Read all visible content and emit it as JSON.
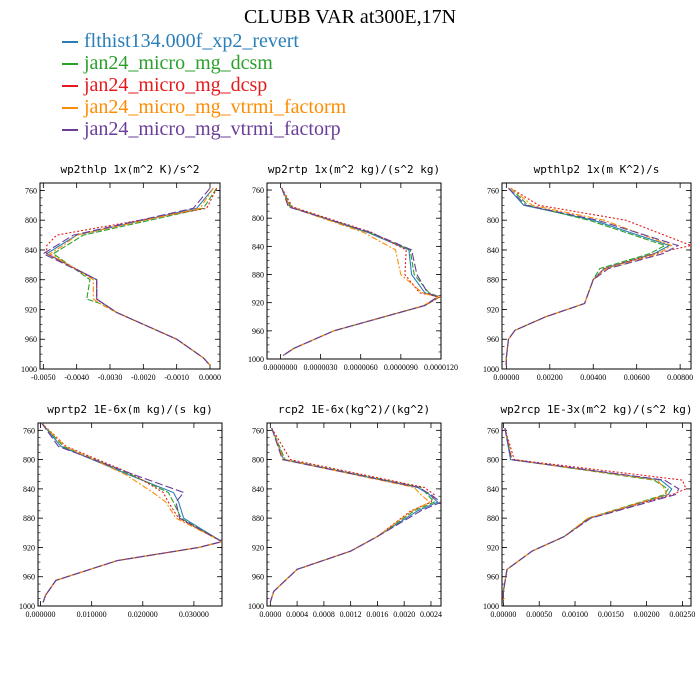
{
  "title": "CLUBB VAR at300E,17N",
  "legend": [
    {
      "name": "flthist134.000f_xp2_revert",
      "color": "#2a7fb8",
      "dash": ""
    },
    {
      "name": "jan24_micro_mg_dcsm",
      "color": "#2ca02c",
      "dash": "6,2"
    },
    {
      "name": "jan24_micro_mg_dcsp",
      "color": "#e41a1c",
      "dash": "2,2"
    },
    {
      "name": "jan24_micro_mg_vtrmi_factorm",
      "color": "#ff8c00",
      "dash": "6,2,2,2"
    },
    {
      "name": "jan24_micro_mg_vtrmi_factorp",
      "color": "#6a3d9a",
      "dash": "8,3"
    }
  ],
  "chart_data": [
    {
      "type": "line",
      "title": "wp2thlp  1x(m^2 K)/s^2",
      "xlim": [
        -0.0051,
        0.0003
      ],
      "xticks": [
        -0.005,
        -0.004,
        -0.003,
        -0.002,
        -0.001,
        0.0
      ],
      "xtick_labels": [
        "-0.0050",
        "-0.0040",
        "-0.0030",
        "-0.0020",
        "-0.0010",
        "0.0000"
      ],
      "ylim": [
        1000,
        750
      ],
      "yticks": [
        760,
        800,
        840,
        880,
        920,
        960,
        1000
      ],
      "levels": [
        757,
        784,
        820,
        834,
        845,
        880,
        906,
        912,
        924,
        960,
        985,
        995
      ],
      "series": [
        {
          "values": [
            0.0001,
            -0.0004,
            -0.004,
            -0.0045,
            -0.0049,
            -0.0034,
            -0.0034,
            -0.0032,
            -0.0028,
            -0.001,
            -0.0002,
            0.0
          ]
        },
        {
          "values": [
            0.0002,
            -0.0002,
            -0.0038,
            -0.0043,
            -0.0047,
            -0.0036,
            -0.0037,
            -0.0033,
            -0.0028,
            -0.001,
            -0.0002,
            0.0
          ]
        },
        {
          "values": [
            0.0002,
            -0.0001,
            -0.0046,
            -0.0049,
            -0.0049,
            -0.0034,
            -0.0034,
            -0.0032,
            -0.0028,
            -0.001,
            -0.0002,
            0.0
          ]
        },
        {
          "values": [
            0.0001,
            -0.0003,
            -0.004,
            -0.0044,
            -0.0048,
            -0.0035,
            -0.0035,
            -0.0033,
            -0.0028,
            -0.001,
            -0.0002,
            0.0
          ]
        },
        {
          "values": [
            0.0,
            -0.0005,
            -0.0041,
            -0.0046,
            -0.005,
            -0.0034,
            -0.0034,
            -0.0032,
            -0.0028,
            -0.001,
            -0.0002,
            0.0
          ]
        }
      ]
    },
    {
      "type": "line",
      "title": "wp2rtp  1x(m^2 kg)/(s^2 kg)",
      "xlim": [
        -1e-06,
        1.2e-05
      ],
      "xticks": [
        0.0,
        3e-06,
        6e-06,
        9e-06,
        1.2e-05
      ],
      "xtick_labels": [
        "0.0000000",
        "0.0000030",
        "0.0000060",
        "0.0000090",
        "0.0000120"
      ],
      "ylim": [
        1000,
        750
      ],
      "yticks": [
        760,
        800,
        840,
        880,
        920,
        960,
        1000
      ],
      "levels": [
        757,
        784,
        820,
        845,
        880,
        906,
        912,
        924,
        960,
        985,
        995
      ],
      "series": [
        {
          "values": [
            1e-07,
            7e-07,
            6.5e-06,
            9.6e-06,
            9.8e-06,
            1.08e-05,
            1.18e-05,
            1.08e-05,
            4e-06,
            1e-06,
            2e-07
          ]
        },
        {
          "values": [
            1e-07,
            8e-07,
            6.6e-06,
            9.7e-06,
            1e-05,
            1.11e-05,
            1.19e-05,
            1.08e-05,
            4e-06,
            1e-06,
            2e-07
          ]
        },
        {
          "values": [
            1e-07,
            9e-07,
            6.8e-06,
            9.4e-06,
            9.3e-06,
            1.04e-05,
            1.19e-05,
            1.08e-05,
            4e-06,
            1e-06,
            2e-07
          ]
        },
        {
          "values": [
            1e-07,
            7e-07,
            6.2e-06,
            8.6e-06,
            9e-06,
            1.06e-05,
            1.18e-05,
            1.07e-05,
            4e-06,
            1e-06,
            2e-07
          ]
        },
        {
          "values": [
            1e-07,
            6e-07,
            6.7e-06,
            9.8e-06,
            1.02e-05,
            1.1e-05,
            1.17e-05,
            1.08e-05,
            4e-06,
            1e-06,
            2e-07
          ]
        }
      ]
    },
    {
      "type": "line",
      "title": "wpthlp2  1x(m K^2)/s",
      "xlim": [
        -0.0002,
        0.0085
      ],
      "xticks": [
        0.0,
        0.002,
        0.004,
        0.006,
        0.008
      ],
      "xtick_labels": [
        "0.00000",
        "0.00200",
        "0.00400",
        "0.00600",
        "0.00800"
      ],
      "ylim": [
        1000,
        750
      ],
      "yticks": [
        760,
        800,
        840,
        880,
        920,
        960,
        1000
      ],
      "levels": [
        757,
        780,
        800,
        834,
        845,
        865,
        880,
        912,
        930,
        948,
        960,
        985,
        995
      ],
      "series": [
        {
          "values": [
            0.0001,
            0.0008,
            0.004,
            0.0075,
            0.0068,
            0.0045,
            0.004,
            0.0036,
            0.0018,
            0.0004,
            0.0001,
            0.0,
            0.0
          ]
        },
        {
          "values": [
            0.0002,
            0.001,
            0.0038,
            0.0073,
            0.0066,
            0.0043,
            0.004,
            0.0036,
            0.0018,
            0.0004,
            0.0001,
            0.0,
            0.0
          ]
        },
        {
          "values": [
            0.0002,
            0.0015,
            0.0055,
            0.0085,
            0.0068,
            0.0045,
            0.004,
            0.0036,
            0.0018,
            0.0004,
            0.0001,
            0.0,
            0.0
          ]
        },
        {
          "values": [
            0.0002,
            0.0012,
            0.0045,
            0.0076,
            0.007,
            0.0046,
            0.004,
            0.0036,
            0.0018,
            0.0004,
            0.0001,
            0.0,
            0.0
          ]
        },
        {
          "values": [
            0.0001,
            0.0009,
            0.0042,
            0.0079,
            0.0072,
            0.0047,
            0.004,
            0.0036,
            0.0018,
            0.0004,
            0.0001,
            0.0,
            0.0
          ]
        }
      ]
    },
    {
      "type": "line",
      "title": "wprtp2  1E-6x(m kg)/(s kg)",
      "xlim": [
        -0.0005,
        0.0355
      ],
      "xticks": [
        0.0,
        0.01,
        0.02,
        0.03
      ],
      "xtick_labels": [
        "0.000000",
        "0.010000",
        "0.020000",
        "0.030000"
      ],
      "ylim": [
        1000,
        750
      ],
      "yticks": [
        760,
        800,
        840,
        880,
        920,
        960,
        1000
      ],
      "levels": [
        750,
        782,
        820,
        845,
        858,
        880,
        912,
        920,
        938,
        965,
        985,
        995
      ],
      "series": [
        {
          "values": [
            0.0002,
            0.004,
            0.017,
            0.026,
            0.027,
            0.028,
            0.0355,
            0.031,
            0.015,
            0.003,
            0.001,
            0.0005
          ]
        },
        {
          "values": [
            0.0002,
            0.0045,
            0.0175,
            0.025,
            0.026,
            0.0275,
            0.0355,
            0.031,
            0.015,
            0.003,
            0.001,
            0.0005
          ]
        },
        {
          "values": [
            0.0002,
            0.005,
            0.018,
            0.024,
            0.025,
            0.027,
            0.0355,
            0.031,
            0.015,
            0.003,
            0.001,
            0.0005
          ]
        },
        {
          "values": [
            0.0002,
            0.0048,
            0.0165,
            0.022,
            0.0245,
            0.0265,
            0.0355,
            0.031,
            0.015,
            0.003,
            0.001,
            0.0005
          ]
        },
        {
          "values": [
            0.0002,
            0.0035,
            0.018,
            0.028,
            0.0265,
            0.0272,
            0.0355,
            0.031,
            0.015,
            0.003,
            0.001,
            0.0005
          ]
        }
      ]
    },
    {
      "type": "line",
      "title": "rcp2  1E-6x(kg^2)/(kg^2)",
      "xlim": [
        -5e-05,
        0.00255
      ],
      "xticks": [
        0.0,
        0.0004,
        0.0008,
        0.0012,
        0.0016,
        0.002,
        0.0024
      ],
      "xtick_labels": [
        "0.0000",
        "0.0004",
        "0.0008",
        "0.0012",
        "0.0016",
        "0.0020",
        "0.0024"
      ],
      "ylim": [
        1000,
        750
      ],
      "yticks": [
        760,
        800,
        840,
        880,
        920,
        960,
        1000
      ],
      "levels": [
        757,
        800,
        838,
        848,
        858,
        870,
        905,
        925,
        950,
        980,
        995
      ],
      "series": [
        {
          "values": [
            2e-05,
            0.0002,
            0.0022,
            0.00238,
            0.0025,
            0.0022,
            0.0016,
            0.0012,
            0.0004,
            5e-05,
            0.0
          ]
        },
        {
          "values": [
            2e-05,
            0.00022,
            0.00225,
            0.00235,
            0.00245,
            0.00215,
            0.0016,
            0.0012,
            0.0004,
            5e-05,
            0.0
          ]
        },
        {
          "values": [
            2e-05,
            0.0003,
            0.0023,
            0.00245,
            0.0024,
            0.0021,
            0.0016,
            0.0012,
            0.0004,
            5e-05,
            0.0
          ]
        },
        {
          "values": [
            2e-05,
            0.0002,
            0.00215,
            0.00225,
            0.00238,
            0.00212,
            0.0016,
            0.0012,
            0.0004,
            5e-05,
            0.0
          ]
        },
        {
          "values": [
            2e-05,
            0.00018,
            0.00222,
            0.0024,
            0.00255,
            0.00225,
            0.0016,
            0.0012,
            0.0004,
            5e-05,
            0.0
          ]
        }
      ]
    },
    {
      "type": "line",
      "title": "wp2rcp  1E-3x(m^2 kg)/(s^2 kg)",
      "xlim": [
        -2e-05,
        0.00262
      ],
      "xticks": [
        0.0,
        0.0005,
        0.001,
        0.0015,
        0.002,
        0.0025
      ],
      "xtick_labels": [
        "0.00000",
        "0.00050",
        "0.00100",
        "0.00150",
        "0.00200",
        "0.00250"
      ],
      "ylim": [
        1000,
        750
      ],
      "yticks": [
        760,
        800,
        840,
        880,
        920,
        960,
        1000
      ],
      "levels": [
        757,
        800,
        828,
        840,
        848,
        880,
        905,
        925,
        950,
        980,
        995
      ],
      "series": [
        {
          "values": [
            2e-05,
            0.0001,
            0.0022,
            0.00235,
            0.0023,
            0.0012,
            0.00085,
            0.0004,
            5e-05,
            0.0,
            0.0
          ]
        },
        {
          "values": [
            2e-05,
            0.00012,
            0.0021,
            0.0023,
            0.00225,
            0.00118,
            0.00085,
            0.0004,
            5e-05,
            0.0,
            0.0
          ]
        },
        {
          "values": [
            2e-05,
            0.00015,
            0.0025,
            0.00255,
            0.00235,
            0.0012,
            0.00085,
            0.0004,
            5e-05,
            0.0,
            0.0
          ]
        },
        {
          "values": [
            2e-05,
            0.00012,
            0.00215,
            0.00225,
            0.00228,
            0.00118,
            0.00085,
            0.0004,
            5e-05,
            0.0,
            0.0
          ]
        },
        {
          "values": [
            2e-05,
            0.00011,
            0.00225,
            0.00245,
            0.0024,
            0.00122,
            0.00085,
            0.0004,
            5e-05,
            0.0,
            0.0
          ]
        }
      ]
    }
  ]
}
